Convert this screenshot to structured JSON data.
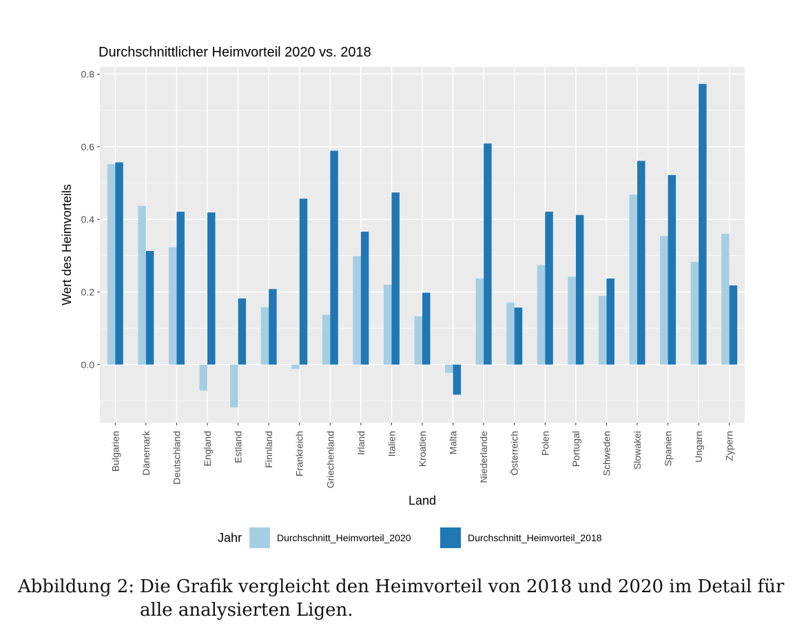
{
  "chart_data": {
    "type": "bar",
    "title": "Durchschnittlicher Heimvorteil 2020 vs. 2018",
    "xlabel": "Land",
    "ylabel": "Wert des Heimvorteils",
    "ylim": [
      -0.16,
      0.82
    ],
    "yticks": [
      0.0,
      0.2,
      0.4,
      0.6,
      0.8
    ],
    "ytick_labels": [
      "0.0",
      "0.2",
      "0.4",
      "0.6",
      "0.8"
    ],
    "grid": true,
    "legend": {
      "title": "Jahr",
      "placement": "bottom"
    },
    "categories": [
      "Bulgarien",
      "Dänemark",
      "Deutschland",
      "England",
      "Estland",
      "Finnland",
      "Frankreich",
      "Griechenland",
      "Irland",
      "Italien",
      "Kroatien",
      "Malta",
      "Niederlande",
      "Österreich",
      "Polen",
      "Portugal",
      "Schweden",
      "Slowakei",
      "Spanien",
      "Ungarn",
      "Zypern"
    ],
    "series": [
      {
        "name": "Durchschnitt_Heimvorteil_2020",
        "color": "#a6cee3",
        "values": [
          0.552,
          0.437,
          0.323,
          -0.072,
          -0.118,
          0.158,
          -0.012,
          0.137,
          0.299,
          0.22,
          0.133,
          -0.023,
          0.237,
          0.171,
          0.274,
          0.242,
          0.189,
          0.468,
          0.354,
          0.283,
          0.36
        ]
      },
      {
        "name": "Durchschnitt_Heimvorteil_2018",
        "color": "#1f78b4",
        "values": [
          0.557,
          0.313,
          0.421,
          0.419,
          0.182,
          0.208,
          0.457,
          0.589,
          0.366,
          0.474,
          0.198,
          -0.083,
          0.609,
          0.157,
          0.421,
          0.412,
          0.237,
          0.561,
          0.522,
          0.773,
          0.218
        ]
      }
    ]
  },
  "caption": {
    "label": "Abbildung 2:",
    "text": "Die Grafik vergleicht den Heimvorteil von 2018 und 2020 im Detail für alle analysierten Ligen."
  }
}
